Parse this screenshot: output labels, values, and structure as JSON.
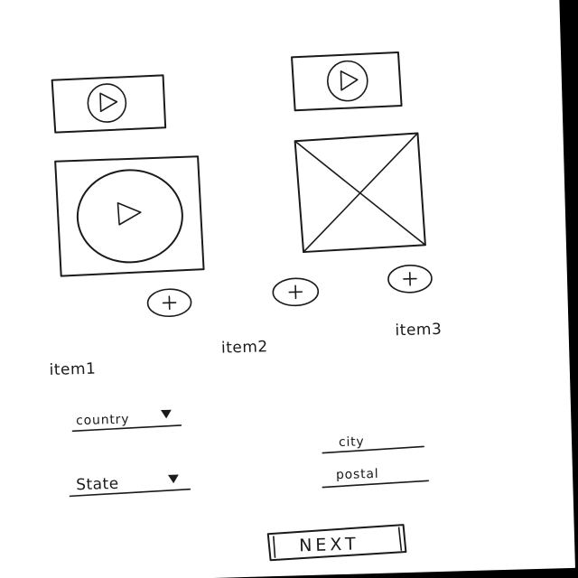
{
  "items": [
    {
      "label": "item1"
    },
    {
      "label": "item2"
    },
    {
      "label": "item3"
    }
  ],
  "form": {
    "country_label": "country",
    "state_label": "State",
    "city_label": "city",
    "postal_label": "postal"
  },
  "actions": {
    "next_label": "NEXT"
  },
  "icons": {
    "play": "play-icon",
    "plus": "plus-icon",
    "dropdown": "triangle-down-icon",
    "image_placeholder": "x-placeholder-icon"
  }
}
